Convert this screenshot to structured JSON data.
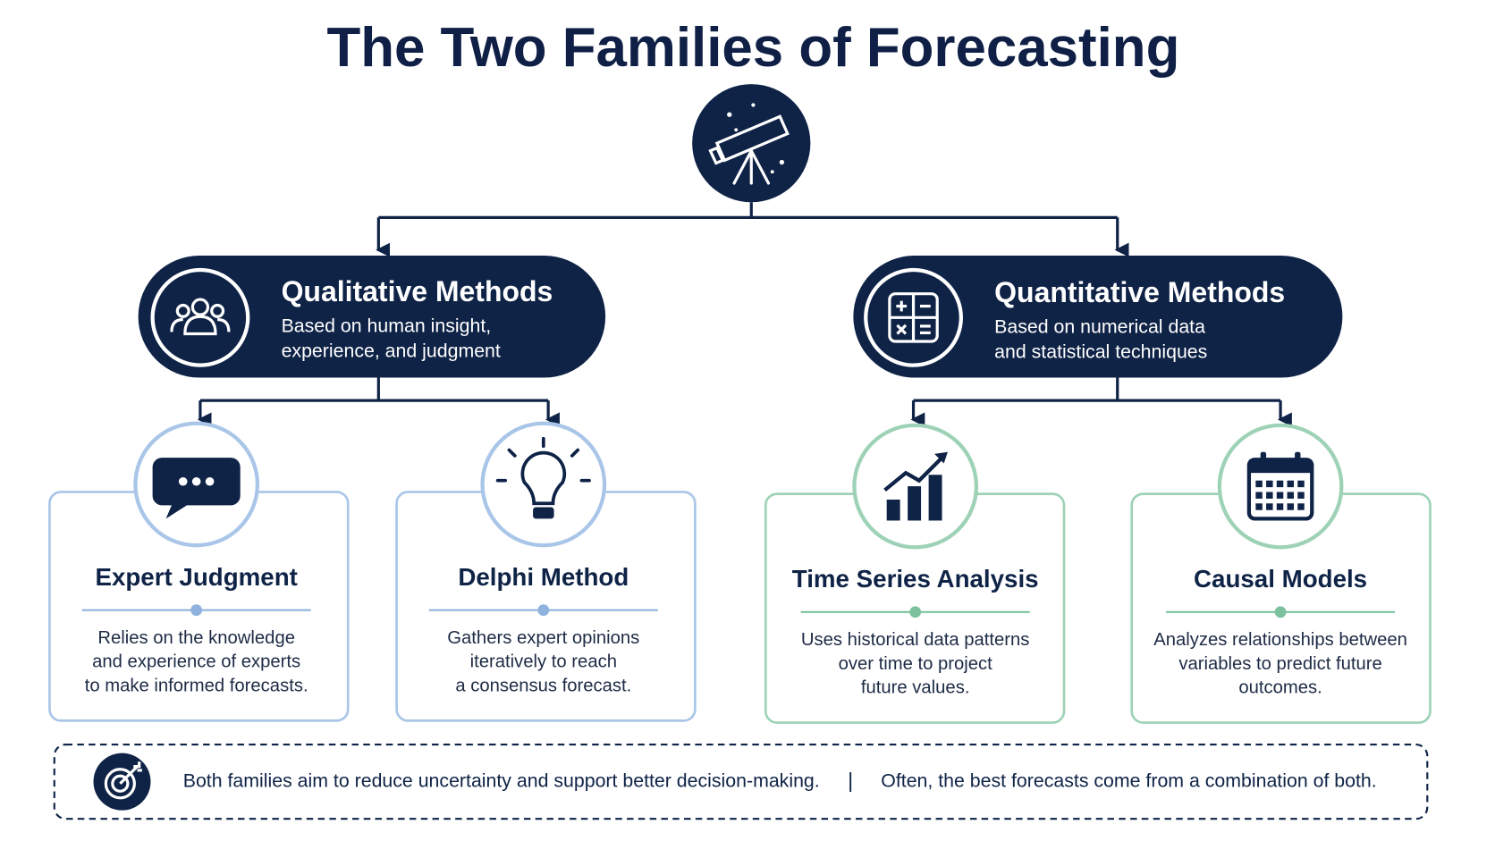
{
  "title": "The Two Families of Forecasting",
  "families": [
    {
      "name": "Qualitative Methods",
      "description": [
        "Based on human insight,",
        "experience, and judgment"
      ],
      "methods": [
        {
          "name": "Expert Judgment",
          "description": [
            "Relies on the knowledge",
            "and experience of experts",
            "to make informed forecasts."
          ]
        },
        {
          "name": "Delphi Method",
          "description": [
            "Gathers expert opinions",
            "iteratively to reach",
            "a consensus forecast."
          ]
        }
      ]
    },
    {
      "name": "Quantitative Methods",
      "description": [
        "Based on numerical data",
        "and statistical techniques"
      ],
      "methods": [
        {
          "name": "Time Series Analysis",
          "description": [
            "Uses historical data patterns",
            "over time to project",
            "future values."
          ]
        },
        {
          "name": "Causal Models",
          "description": [
            "Analyzes relationships between",
            "variables to predict future",
            "outcomes."
          ]
        }
      ]
    }
  ],
  "footer": {
    "left": "Both families aim to reduce uncertainty and support better decision-making.",
    "separator": "|",
    "right": "Often, the best forecasts come from a combination of both."
  }
}
